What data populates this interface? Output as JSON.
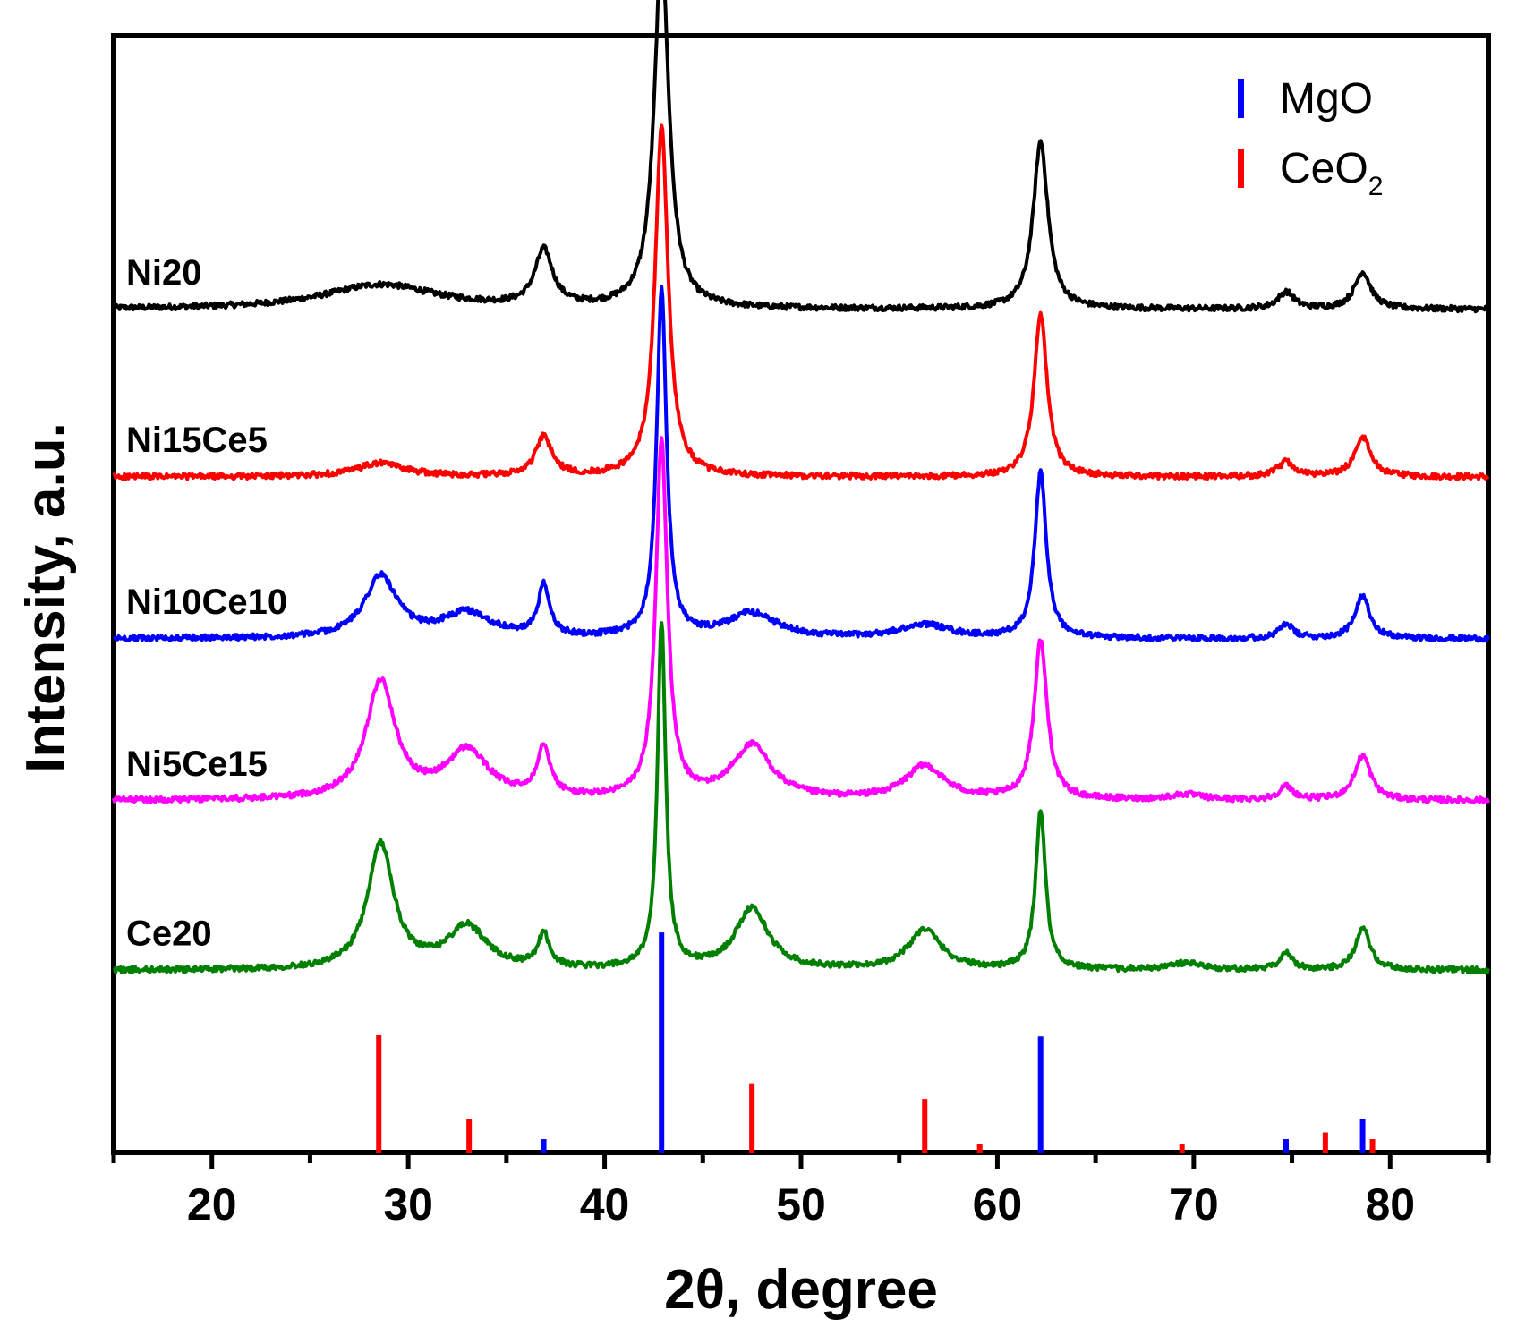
{
  "chart_data": {
    "type": "line",
    "title": "",
    "xlabel": "2θ, degree",
    "ylabel": "Intensity, a.u.",
    "xlim": [
      15,
      85
    ],
    "x_ticks": [
      20,
      30,
      40,
      50,
      60,
      70,
      80
    ],
    "x_tick_labels": [
      "20",
      "30",
      "40",
      "50",
      "60",
      "70",
      "80"
    ],
    "y_ticks_visible": false,
    "grid": false,
    "legend_position": "top-right",
    "legend": [
      {
        "name": "MgO",
        "color": "#0000ff"
      },
      {
        "name": "CeO",
        "subscript": "2",
        "color": "#ff0000"
      }
    ],
    "series": [
      {
        "name": "Ni20",
        "color": "#000000",
        "baseline": 0.755,
        "slope": 0,
        "peaks": [
          [
            28.6,
            0.022,
            3.5
          ],
          [
            36.9,
            0.05,
            0.55
          ],
          [
            42.9,
            0.318,
            0.45
          ],
          [
            62.2,
            0.15,
            0.45
          ],
          [
            74.7,
            0.015,
            0.5
          ],
          [
            78.6,
            0.033,
            0.5
          ]
        ]
      },
      {
        "name": "Ni15Ce5",
        "color": "#ff0000",
        "baseline": 0.605,
        "slope": 0,
        "peaks": [
          [
            28.6,
            0.012,
            1.5
          ],
          [
            36.9,
            0.035,
            0.5
          ],
          [
            42.9,
            0.313,
            0.4
          ],
          [
            62.2,
            0.145,
            0.4
          ],
          [
            74.7,
            0.013,
            0.5
          ],
          [
            78.6,
            0.035,
            0.5
          ]
        ]
      },
      {
        "name": "Ni10Ce10",
        "color": "#0000ff",
        "baseline": 0.46,
        "slope": 0,
        "peaks": [
          [
            28.6,
            0.055,
            1.0
          ],
          [
            33.0,
            0.022,
            1.5
          ],
          [
            36.9,
            0.045,
            0.35
          ],
          [
            42.9,
            0.31,
            0.3
          ],
          [
            47.5,
            0.022,
            1.5
          ],
          [
            56.3,
            0.012,
            1.5
          ],
          [
            62.2,
            0.148,
            0.35
          ],
          [
            74.7,
            0.013,
            0.4
          ],
          [
            78.6,
            0.038,
            0.45
          ]
        ]
      },
      {
        "name": "Ni5Ce15",
        "color": "#ff00ff",
        "baseline": 0.315,
        "slope": 0,
        "peaks": [
          [
            28.6,
            0.105,
            0.9
          ],
          [
            33.0,
            0.043,
            1.3
          ],
          [
            36.9,
            0.045,
            0.4
          ],
          [
            42.9,
            0.32,
            0.35
          ],
          [
            47.5,
            0.048,
            1.2
          ],
          [
            56.3,
            0.03,
            1.2
          ],
          [
            62.2,
            0.142,
            0.4
          ],
          [
            69.6,
            0.005,
            1.0
          ],
          [
            74.7,
            0.012,
            0.45
          ],
          [
            78.6,
            0.04,
            0.5
          ]
        ]
      },
      {
        "name": "Ce20",
        "color": "#008000",
        "baseline": 0.163,
        "slope": 0,
        "peaks": [
          [
            28.6,
            0.112,
            0.8
          ],
          [
            33.0,
            0.038,
            1.2
          ],
          [
            36.9,
            0.03,
            0.35
          ],
          [
            42.9,
            0.31,
            0.25
          ],
          [
            47.5,
            0.055,
            1.0
          ],
          [
            56.3,
            0.036,
            1.0
          ],
          [
            62.2,
            0.143,
            0.3
          ],
          [
            69.6,
            0.006,
            1.0
          ],
          [
            74.7,
            0.015,
            0.4
          ],
          [
            78.6,
            0.037,
            0.45
          ]
        ]
      }
    ],
    "reference_lines": {
      "MgO": [
        {
          "x": 36.9,
          "h": 0.012
        },
        {
          "x": 42.9,
          "h": 0.197
        },
        {
          "x": 62.2,
          "h": 0.104
        },
        {
          "x": 74.7,
          "h": 0.012
        },
        {
          "x": 78.6,
          "h": 0.03
        }
      ],
      "CeO2": [
        {
          "x": 28.5,
          "h": 0.105
        },
        {
          "x": 33.1,
          "h": 0.03
        },
        {
          "x": 47.5,
          "h": 0.062
        },
        {
          "x": 56.3,
          "h": 0.048
        },
        {
          "x": 59.1,
          "h": 0.008
        },
        {
          "x": 69.4,
          "h": 0.008
        },
        {
          "x": 76.7,
          "h": 0.018
        },
        {
          "x": 79.1,
          "h": 0.012
        }
      ]
    }
  }
}
